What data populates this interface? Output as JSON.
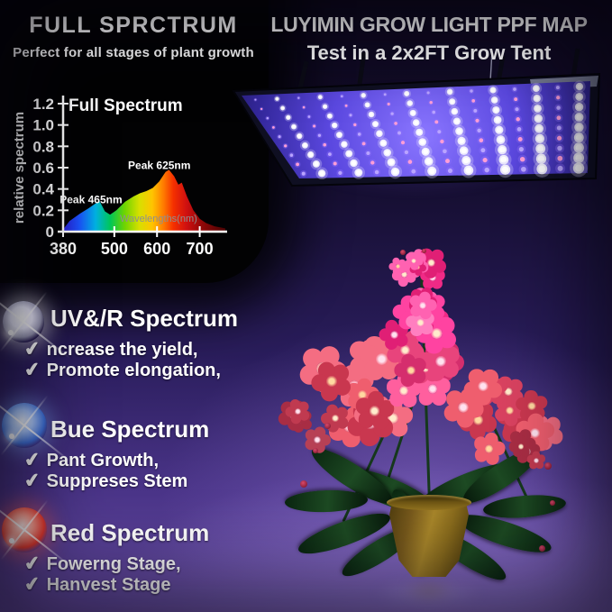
{
  "header_left": {
    "title": "FULL SPRCTRUM",
    "subtitle": "Perfect for all stages of plant growth"
  },
  "header_right": {
    "line1": "LUYIMIN GROW LIGHT PPF MAP",
    "line2": "Test in a 2x2FT Grow Tent"
  },
  "chart_data": {
    "type": "area",
    "title": "Full Spectrum",
    "ylabel": "relative spectrum",
    "xlabel": "Wavelengths(nm)",
    "xlim": [
      380,
      760
    ],
    "ylim": [
      0,
      1.2
    ],
    "xticks": [
      380,
      500,
      600,
      700
    ],
    "yticks": [
      0,
      0.2,
      0.4,
      0.6,
      0.8,
      1.0,
      1.2
    ],
    "ytick_labels": [
      "0",
      "0.2",
      "0.4",
      "0.6",
      "0.8",
      "1.0",
      "1.2"
    ],
    "grid": false,
    "legend": false,
    "annotations": [
      {
        "text": "Peak 465nm",
        "x": 465,
        "y": 0.3
      },
      {
        "text": "Peak 625nm",
        "x": 625,
        "y": 0.62
      }
    ],
    "points": [
      [
        380,
        0.02
      ],
      [
        395,
        0.1
      ],
      [
        420,
        0.17
      ],
      [
        440,
        0.22
      ],
      [
        465,
        0.29
      ],
      [
        478,
        0.19
      ],
      [
        490,
        0.16
      ],
      [
        505,
        0.2
      ],
      [
        525,
        0.28
      ],
      [
        545,
        0.33
      ],
      [
        560,
        0.36
      ],
      [
        575,
        0.38
      ],
      [
        590,
        0.41
      ],
      [
        605,
        0.47
      ],
      [
        620,
        0.56
      ],
      [
        628,
        0.58
      ],
      [
        640,
        0.52
      ],
      [
        650,
        0.44
      ],
      [
        658,
        0.46
      ],
      [
        670,
        0.33
      ],
      [
        685,
        0.2
      ],
      [
        700,
        0.12
      ],
      [
        715,
        0.08
      ],
      [
        735,
        0.05
      ],
      [
        760,
        0.03
      ]
    ],
    "fill_gradient": [
      [
        0,
        "#2a1fd8"
      ],
      [
        0.1,
        "#1b54ff"
      ],
      [
        0.2,
        "#00b4e6"
      ],
      [
        0.29,
        "#00c85a"
      ],
      [
        0.38,
        "#6fd400"
      ],
      [
        0.47,
        "#d8e000"
      ],
      [
        0.55,
        "#ffc400"
      ],
      [
        0.62,
        "#ff7a00"
      ],
      [
        0.68,
        "#f53000"
      ],
      [
        0.76,
        "#d01010"
      ],
      [
        0.86,
        "#8e0707"
      ],
      [
        1,
        "#4a0303"
      ]
    ]
  },
  "sections": [
    {
      "icon": "white-glow-orb",
      "title": "UV&/R Spectrum",
      "items": [
        "ncrease the yield,",
        "Promote elongation,"
      ]
    },
    {
      "icon": "blue-glow-orb",
      "title": "Bue Spectrum",
      "items": [
        "Pant Growth,",
        "Suppreses Stem"
      ]
    },
    {
      "icon": "red-glow-orb",
      "title": "Red Spectrum",
      "items": [
        "Fowerng Stage,",
        "Hanvest Stage"
      ]
    }
  ],
  "icons": {
    "check_glyph": "✔"
  },
  "colors": {
    "heading_text": "#ffffff",
    "checkmark_red": "#d6151c",
    "panel_violet": "#5b48e0",
    "flower_pink": "#f0308a",
    "pot_gold": "#a8862a",
    "background_bottom": "#6a4fa8"
  }
}
